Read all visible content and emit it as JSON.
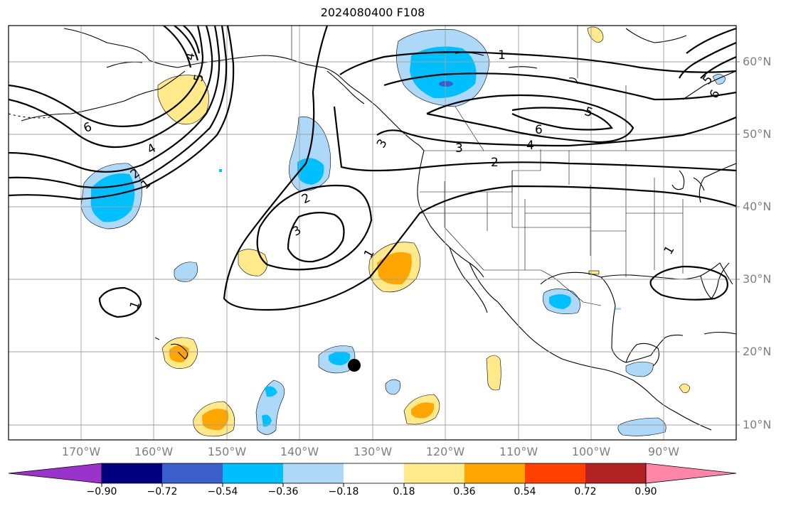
{
  "title": "2024080400 F108",
  "lat_labels": [
    "60°N",
    "50°N",
    "40°N",
    "30°N",
    "20°N",
    "10°N"
  ],
  "lon_labels": [
    "170°W",
    "160°W",
    "150°W",
    "140°W",
    "130°W",
    "120°W",
    "110°W",
    "100°W",
    "90°W"
  ],
  "colorbar": {
    "tick_labels": [
      "−0.90",
      "−0.72",
      "−0.54",
      "−0.36",
      "−0.18",
      "0.18",
      "0.36",
      "0.54",
      "0.72",
      "0.90"
    ],
    "colors": [
      "#9933cc",
      "#000080",
      "#3a5fcd",
      "#00bfff",
      "#add8f7",
      "#ffffff",
      "#ffe98a",
      "#ffa500",
      "#ff4000",
      "#b22222",
      "#ff85a8"
    ]
  },
  "contour_labels": [
    "1",
    "1",
    "1",
    "1",
    "1",
    "2",
    "2",
    "2",
    "3",
    "3",
    "3",
    "4",
    "4",
    "4",
    "5",
    "5",
    "5",
    "6",
    "6",
    "6"
  ],
  "marker": {
    "lat": 18.2,
    "lon": -132.7
  }
}
